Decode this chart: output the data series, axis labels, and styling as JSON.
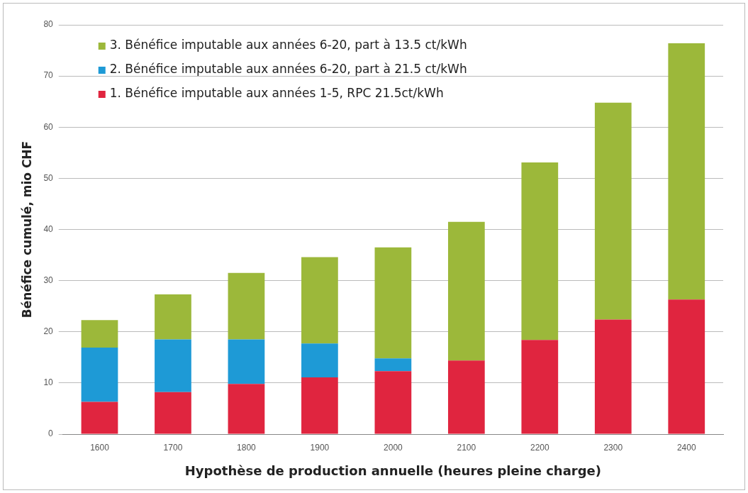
{
  "chart_data": {
    "type": "bar",
    "stacked": true,
    "xlabel": "Hypothèse de production annuelle (heures pleine charge)",
    "ylabel": "Bénéfice cumulé, mio CHF",
    "categories": [
      "1600",
      "1700",
      "1800",
      "1900",
      "2000",
      "2100",
      "2200",
      "2300",
      "2400"
    ],
    "series": [
      {
        "name": "1. Bénéfice imputable aux années 1-5, RPC 21.5ct/kWh",
        "color": "#e0253f",
        "values": [
          6.3,
          8.2,
          9.8,
          11.1,
          12.3,
          14.4,
          18.4,
          22.4,
          26.3
        ]
      },
      {
        "name": "2. Bénéfice imputable aux années 6-20, part à 21.5 ct/kWh",
        "color": "#1e9ad6",
        "values": [
          10.6,
          10.3,
          8.7,
          6.6,
          2.5,
          0,
          0,
          0,
          0
        ]
      },
      {
        "name": "3. Bénéfice imputable aux années 6-20, part à 13.5 ct/kWh",
        "color": "#9cb83a",
        "values": [
          5.4,
          8.8,
          13.0,
          16.9,
          21.7,
          27.1,
          34.7,
          42.4,
          50.1
        ]
      }
    ],
    "ylim": [
      0,
      80
    ],
    "yticks": [
      0,
      10,
      20,
      30,
      40,
      50,
      60,
      70,
      80
    ],
    "grid": "y",
    "legend": "top left"
  }
}
